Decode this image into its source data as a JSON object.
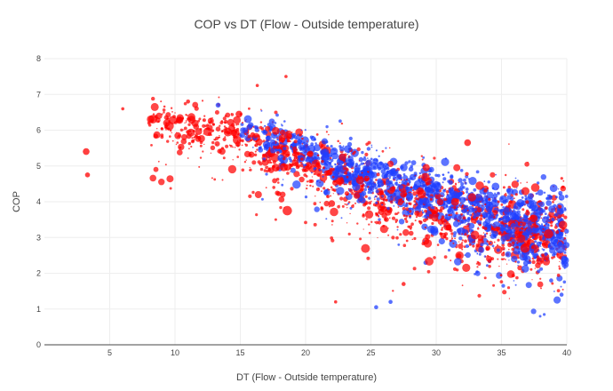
{
  "chart_data": {
    "type": "scatter",
    "title": "COP vs DT (Flow - Outside temperature)",
    "xlabel": "DT (Flow - Outside temperature)",
    "ylabel": "COP",
    "xlim": [
      0,
      40
    ],
    "ylim": [
      0,
      8
    ],
    "xticks": [
      5,
      10,
      15,
      20,
      25,
      30,
      35,
      40
    ],
    "yticks": [
      0,
      1,
      2,
      3,
      4,
      5,
      6,
      7,
      8
    ],
    "grid": true,
    "legend": "none",
    "series": [
      {
        "name": "red",
        "color": "#ff0000",
        "description": "dense cloud: COP falls from about 6 at DT 10 to about 3.2 at DT 40",
        "trend": {
          "x": [
            8,
            15,
            20,
            25,
            30,
            35,
            40
          ],
          "y": [
            6.3,
            5.8,
            5.1,
            4.3,
            3.7,
            3.3,
            3.1
          ]
        },
        "notable_points": [
          {
            "x": 3.2,
            "y": 5.4,
            "size": 6
          },
          {
            "x": 3.3,
            "y": 4.75,
            "size": 4
          },
          {
            "x": 6,
            "y": 6.6,
            "size": 2
          },
          {
            "x": 8,
            "y": 6.2,
            "size": 2
          },
          {
            "x": 11,
            "y": 6.8,
            "size": 3
          },
          {
            "x": 14.9,
            "y": 6.45,
            "size": 6
          },
          {
            "x": 16.3,
            "y": 7.25,
            "size": 2
          },
          {
            "x": 18.5,
            "y": 7.5,
            "size": 2
          },
          {
            "x": 18.6,
            "y": 3.75,
            "size": 9
          },
          {
            "x": 22,
            "y": 3.95,
            "size": 6
          },
          {
            "x": 32.4,
            "y": 5.65,
            "size": 6
          },
          {
            "x": 36.8,
            "y": 2.7,
            "size": 9
          },
          {
            "x": 38.6,
            "y": 3.1,
            "size": 9
          },
          {
            "x": 39.7,
            "y": 3.35,
            "size": 8
          },
          {
            "x": 27.5,
            "y": 1.7,
            "size": 3
          },
          {
            "x": 22.3,
            "y": 1.2,
            "size": 2
          }
        ]
      },
      {
        "name": "blue",
        "color": "#1f3fff",
        "description": "dense cloud concentrated at higher DT: COP falls from about 5.6 at DT 20 to about 3.1 at DT 40",
        "trend": {
          "x": [
            15,
            20,
            25,
            30,
            35,
            40
          ],
          "y": [
            6.0,
            5.4,
            4.7,
            4.2,
            3.5,
            3.1
          ]
        },
        "notable_points": [
          {
            "x": 13.3,
            "y": 6.7,
            "size": 4
          },
          {
            "x": 39.5,
            "y": 2.7,
            "size": 10
          },
          {
            "x": 39.8,
            "y": 2.4,
            "size": 6
          },
          {
            "x": 39.6,
            "y": 1.4,
            "size": 3
          },
          {
            "x": 25.4,
            "y": 1.05,
            "size": 3
          },
          {
            "x": 26.5,
            "y": 1.2,
            "size": 3
          },
          {
            "x": 38.8,
            "y": 1.8,
            "size": 3
          }
        ]
      }
    ]
  }
}
